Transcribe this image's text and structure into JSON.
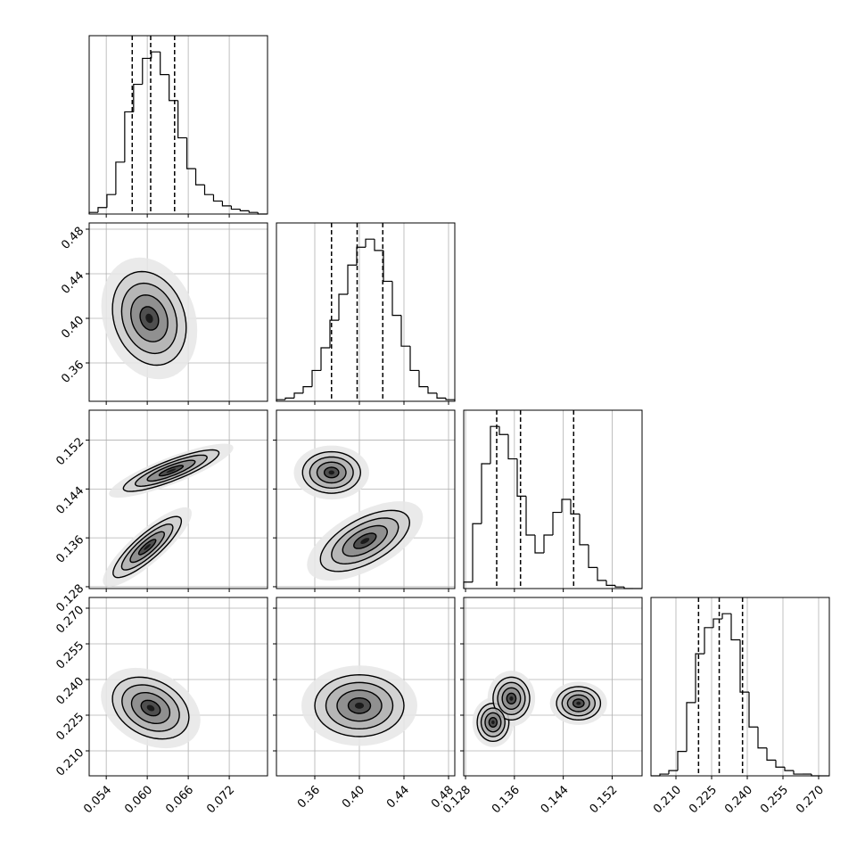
{
  "chart_data": {
    "type": "corner",
    "parameters": [
      {
        "lim": [
          0.0515,
          0.0776
        ],
        "ticks": [
          0.054,
          {
            "value": 0.06,
            "label": "0.060"
          },
          0.066,
          0.072
        ]
      },
      {
        "lim": [
          0.3256,
          0.4856
        ],
        "ticks": [
          0.36,
          {
            "value": 0.4,
            "label": "0.40"
          },
          0.44,
          0.48
        ]
      },
      {
        "lim": [
          0.1277,
          0.1569
        ],
        "ticks": [
          0.128,
          0.136,
          0.144,
          0.152
        ]
      },
      {
        "lim": [
          0.1995,
          0.2745
        ],
        "ticks": [
          {
            "value": 0.21,
            "label": "0.210"
          },
          0.225,
          {
            "value": 0.24,
            "label": "0.240"
          },
          0.255,
          {
            "value": 0.27,
            "label": "0.270"
          }
        ]
      }
    ],
    "histograms": [
      {
        "bins": [
          0.0515,
          0.0528,
          0.0541,
          0.0554,
          0.0567,
          0.058,
          0.0593,
          0.0606,
          0.0619,
          0.0632,
          0.0645,
          0.0658,
          0.0671,
          0.0684,
          0.0697,
          0.071,
          0.0723,
          0.0736,
          0.0749,
          0.0762,
          0.0775
        ],
        "counts": [
          1,
          4,
          12,
          32,
          63,
          80,
          96,
          100,
          86,
          70,
          47,
          28,
          18,
          12,
          8,
          5,
          3,
          2,
          1,
          0
        ],
        "quantiles": [
          0.0578,
          0.0605,
          0.064
        ]
      },
      {
        "bins": [
          0.3256,
          0.3336,
          0.3416,
          0.3496,
          0.3576,
          0.3656,
          0.3736,
          0.3816,
          0.3896,
          0.3976,
          0.4056,
          0.4136,
          0.4216,
          0.4296,
          0.4376,
          0.4456,
          0.4536,
          0.4616,
          0.4696,
          0.4776,
          0.4856
        ],
        "counts": [
          1,
          2,
          5,
          9,
          19,
          33,
          50,
          66,
          84,
          95,
          100,
          93,
          74,
          53,
          34,
          19,
          9,
          5,
          2,
          1
        ],
        "quantiles": [
          0.375,
          0.398,
          0.421
        ]
      },
      {
        "bins": [
          0.1277,
          0.12916,
          0.13062,
          0.13208,
          0.13354,
          0.135,
          0.13646,
          0.13792,
          0.13938,
          0.14084,
          0.1423,
          0.14376,
          0.14522,
          0.14668,
          0.14814,
          0.1496,
          0.15106,
          0.15252,
          0.15398,
          0.15544,
          0.1569
        ],
        "counts": [
          4,
          40,
          77,
          100,
          95,
          80,
          57,
          33,
          22,
          33,
          47,
          55,
          46,
          27,
          13,
          5,
          2,
          1,
          0,
          0
        ],
        "quantiles": [
          0.1331,
          0.137,
          0.1457
        ]
      },
      {
        "bins": [
          0.1995,
          0.20325,
          0.207,
          0.21075,
          0.2145,
          0.21825,
          0.222,
          0.22575,
          0.2295,
          0.23325,
          0.237,
          0.24075,
          0.2445,
          0.24825,
          0.252,
          0.25575,
          0.2595,
          0.26325,
          0.267,
          0.27075,
          0.2745
        ],
        "counts": [
          0,
          1,
          3,
          14,
          42,
          70,
          85,
          90,
          93,
          78,
          48,
          28,
          16,
          9,
          5,
          3,
          1,
          1,
          0,
          0
        ],
        "quantiles": [
          0.2195,
          0.2282,
          0.238
        ]
      }
    ],
    "panels": [
      {
        "row": 1,
        "col": 0,
        "modes": [
          {
            "x": 0.0603,
            "y": 0.4,
            "sx": 0.0027,
            "sy": 0.021,
            "rho": -0.2
          }
        ]
      },
      {
        "row": 2,
        "col": 0,
        "modes": [
          {
            "x": 0.06,
            "y": 0.1345,
            "sx": 0.0025,
            "sy": 0.0025,
            "rho": 0.85
          },
          {
            "x": 0.0635,
            "y": 0.147,
            "sx": 0.0035,
            "sy": 0.0017,
            "rho": 0.85
          }
        ]
      },
      {
        "row": 2,
        "col": 1,
        "modes": [
          {
            "x": 0.375,
            "y": 0.1467,
            "sx": 0.013,
            "sy": 0.0017,
            "rho": 0
          },
          {
            "x": 0.405,
            "y": 0.1355,
            "sx": 0.02,
            "sy": 0.0025,
            "rho": 0.6
          }
        ]
      },
      {
        "row": 3,
        "col": 0,
        "modes": [
          {
            "x": 0.0605,
            "y": 0.228,
            "sx": 0.0028,
            "sy": 0.0065,
            "rho": -0.3
          }
        ]
      },
      {
        "row": 3,
        "col": 1,
        "modes": [
          {
            "x": 0.4,
            "y": 0.229,
            "sx": 0.02,
            "sy": 0.0065,
            "rho": 0
          }
        ]
      },
      {
        "row": 3,
        "col": 2,
        "modes": [
          {
            "x": 0.1325,
            "y": 0.222,
            "sx": 0.0013,
            "sy": 0.004,
            "rho": 0
          },
          {
            "x": 0.1355,
            "y": 0.232,
            "sx": 0.0015,
            "sy": 0.0045,
            "rho": 0
          },
          {
            "x": 0.1465,
            "y": 0.23,
            "sx": 0.0018,
            "sy": 0.0035,
            "rho": 0
          }
        ]
      }
    ]
  }
}
